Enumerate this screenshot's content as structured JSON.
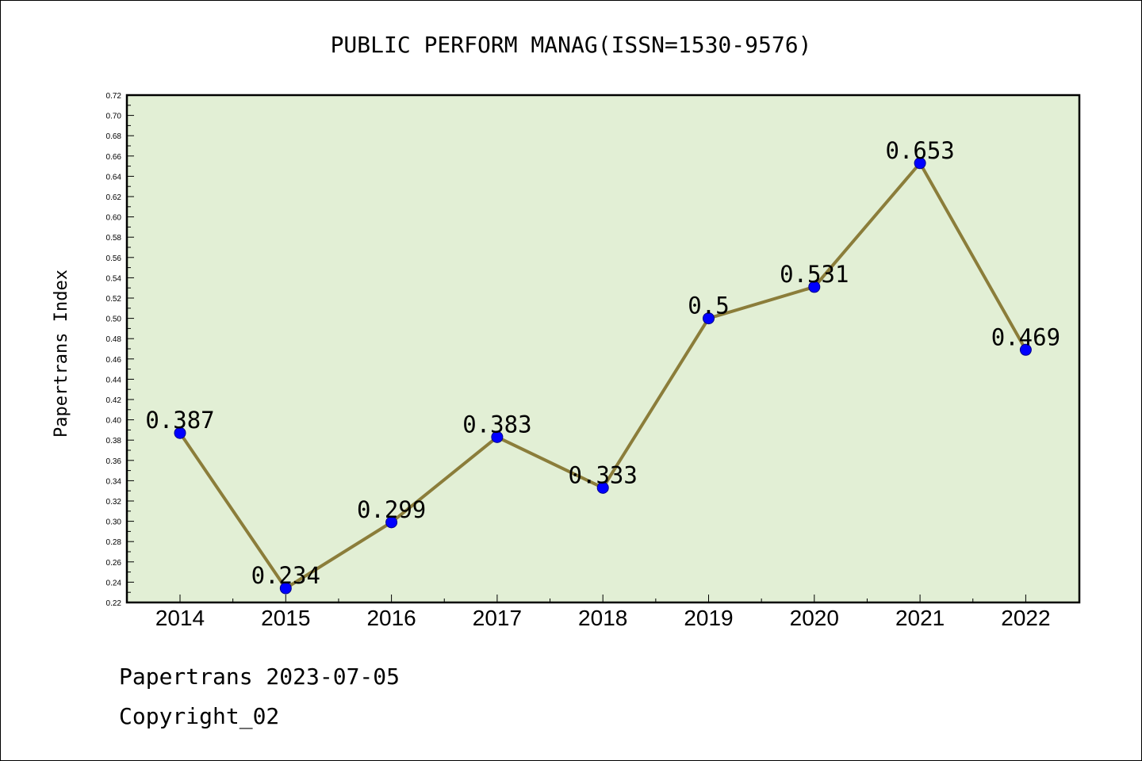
{
  "chart_data": {
    "type": "line",
    "title": "PUBLIC PERFORM MANAG(ISSN=1530-9576)",
    "xlabel": "",
    "ylabel": "Papertrans Index",
    "categories": [
      "2014",
      "2015",
      "2016",
      "2017",
      "2018",
      "2019",
      "2020",
      "2021",
      "2022"
    ],
    "values": [
      0.387,
      0.234,
      0.299,
      0.383,
      0.333,
      0.5,
      0.531,
      0.653,
      0.469
    ],
    "data_labels": [
      "0.387",
      "0.234",
      "0.299",
      "0.383",
      "0.333",
      "0.5",
      "0.531",
      "0.653",
      "0.469"
    ],
    "ylim": [
      0.22,
      0.72
    ],
    "yticks": [
      "0.22",
      "0.24",
      "0.26",
      "0.28",
      "0.30",
      "0.32",
      "0.34",
      "0.36",
      "0.38",
      "0.40",
      "0.42",
      "0.44",
      "0.46",
      "0.48",
      "0.50",
      "0.52",
      "0.54",
      "0.56",
      "0.58",
      "0.60",
      "0.62",
      "0.64",
      "0.66",
      "0.68",
      "0.70",
      "0.72"
    ],
    "grid": false,
    "colors": {
      "plot_background": "#e2efd5",
      "line": "#8b7d3a",
      "marker": "#0000ff",
      "marker_edge": "#00008b"
    }
  },
  "footer": {
    "line1": "Papertrans 2023-07-05",
    "line2": "Copyright_02"
  }
}
